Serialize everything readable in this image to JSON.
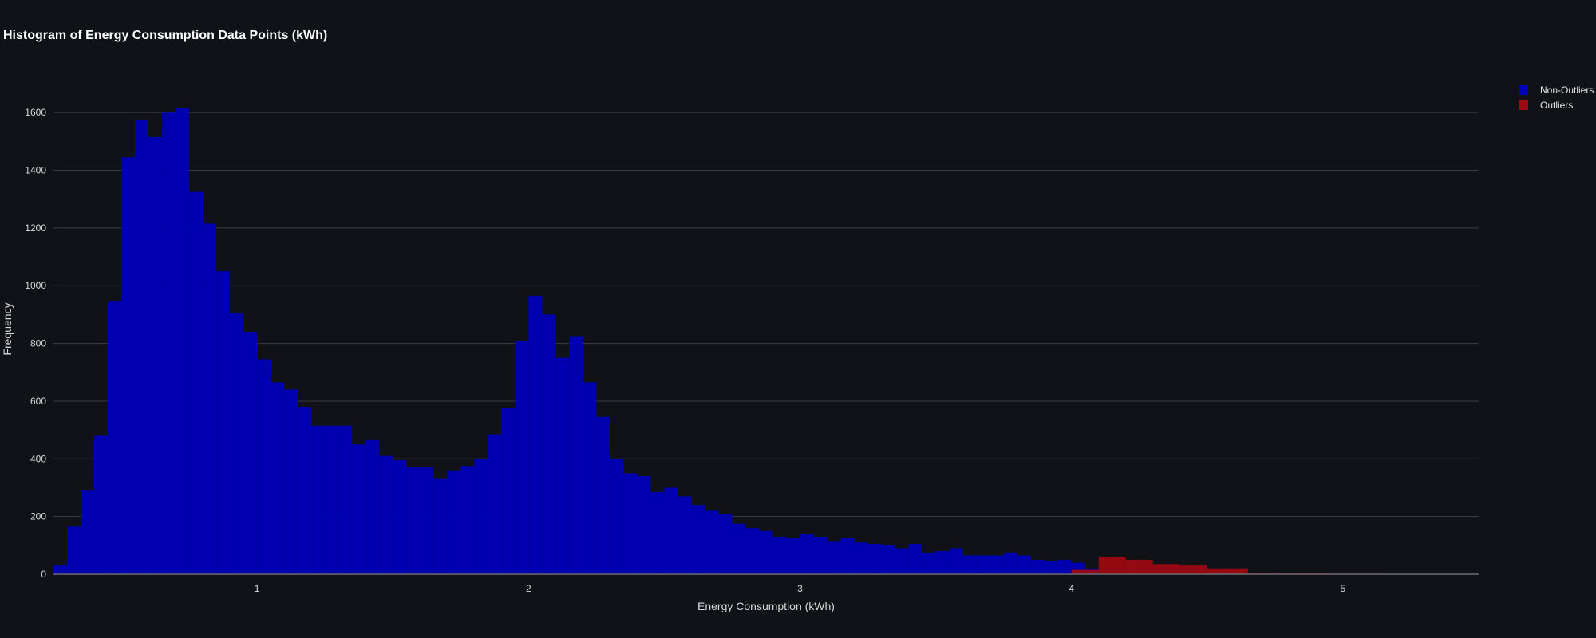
{
  "chart_data": {
    "type": "bar",
    "title": "Histogram of Energy Consumption Data Points (kWh)",
    "xlabel": "Energy Consumption (kWh)",
    "ylabel": "Frequency",
    "xlim": [
      0.25,
      5.5
    ],
    "ylim": [
      0,
      1700
    ],
    "x_ticks": [
      1,
      2,
      3,
      4,
      5
    ],
    "y_ticks": [
      0,
      200,
      400,
      600,
      800,
      1000,
      1200,
      1400,
      1600
    ],
    "grid": true,
    "legend_position": "top-right",
    "bin_width": 0.05,
    "series": [
      {
        "name": "Non-Outliers",
        "color": "#0000b8",
        "bin_start": 0.25,
        "values": [
          30,
          165,
          290,
          480,
          945,
          1445,
          1575,
          1515,
          1600,
          1615,
          1325,
          1215,
          1050,
          905,
          840,
          745,
          665,
          640,
          580,
          515,
          515,
          515,
          450,
          465,
          410,
          395,
          370,
          370,
          330,
          360,
          375,
          400,
          485,
          575,
          810,
          965,
          900,
          750,
          825,
          665,
          545,
          400,
          350,
          340,
          285,
          300,
          270,
          240,
          220,
          210,
          175,
          160,
          150,
          130,
          125,
          140,
          130,
          115,
          125,
          110,
          105,
          100,
          90,
          105,
          75,
          80,
          90,
          65,
          65,
          65,
          75,
          65,
          50,
          45,
          50,
          40,
          20
        ]
      },
      {
        "name": "Outliers",
        "color": "#9e0a10",
        "bin_start": 4.0,
        "values": [
          15,
          15,
          60,
          60,
          50,
          50,
          35,
          35,
          30,
          30,
          20,
          20,
          20,
          5,
          5,
          3,
          3,
          4,
          4,
          2,
          2,
          2,
          2,
          1,
          1
        ]
      }
    ]
  }
}
